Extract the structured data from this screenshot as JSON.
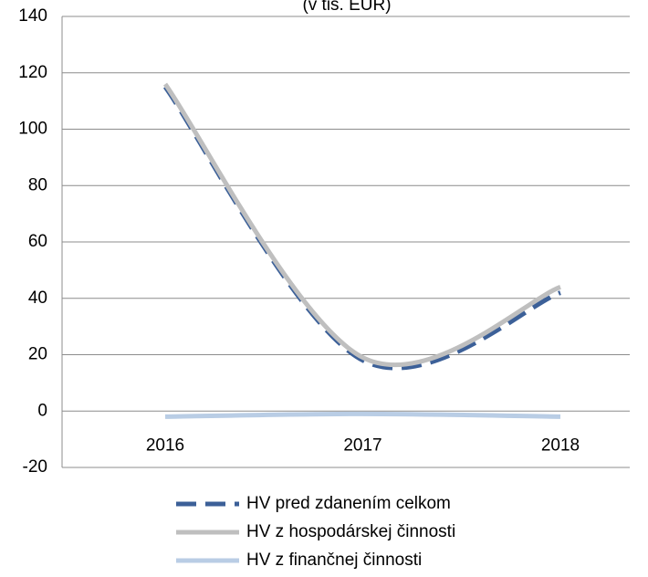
{
  "chart_data": {
    "type": "line",
    "subtitle": "(v tis. EUR)",
    "categories": [
      "2016",
      "2017",
      "2018"
    ],
    "series": [
      {
        "name": "HV pred zdanením celkom",
        "color": "#3c6098",
        "dash": true,
        "values": [
          115,
          18,
          42
        ]
      },
      {
        "name": "HV z hospodárskej činnosti",
        "color": "#bfbfbf",
        "dash": false,
        "values": [
          116,
          19,
          44
        ]
      },
      {
        "name": "HV z finančnej činnosti",
        "color": "#b9cde5",
        "dash": false,
        "values": [
          -2,
          -1,
          -2
        ]
      }
    ],
    "ylim": [
      -20,
      140
    ],
    "yticks": [
      -20,
      0,
      20,
      40,
      60,
      80,
      100,
      120,
      140
    ],
    "grid": true,
    "smooth": true
  }
}
